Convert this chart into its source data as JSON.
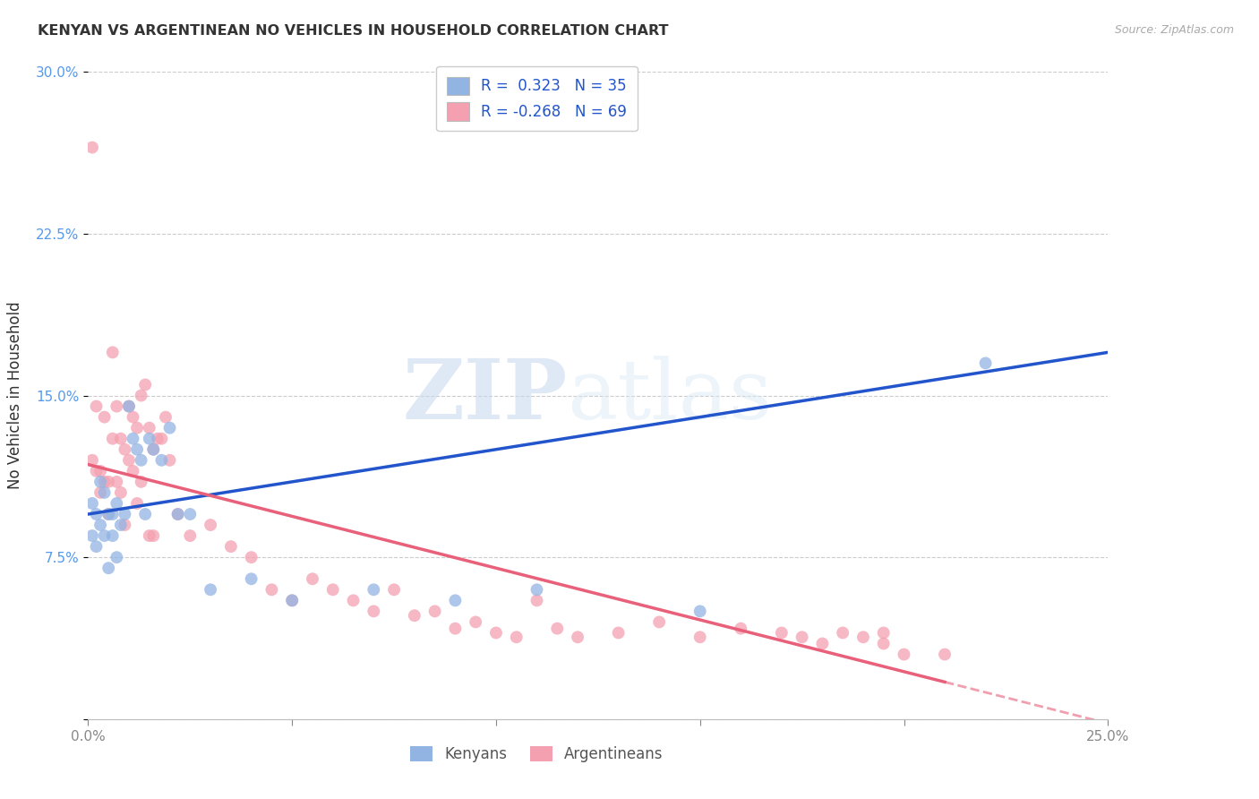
{
  "title": "KENYAN VS ARGENTINEAN NO VEHICLES IN HOUSEHOLD CORRELATION CHART",
  "source": "Source: ZipAtlas.com",
  "ylabel": "No Vehicles in Household",
  "xlim": [
    0.0,
    0.25
  ],
  "ylim": [
    0.0,
    0.3
  ],
  "x_ticks": [
    0.0,
    0.05,
    0.1,
    0.15,
    0.2,
    0.25
  ],
  "y_ticks": [
    0.0,
    0.075,
    0.15,
    0.225,
    0.3
  ],
  "kenyan_R": 0.323,
  "kenyan_N": 35,
  "argentinean_R": -0.268,
  "argentinean_N": 69,
  "kenyan_color": "#92b4e3",
  "argentinean_color": "#f4a0b0",
  "kenyan_line_color": "#2255cc",
  "argentinean_line_color": "#e8607a",
  "legend_label_kenyan": "Kenyans",
  "legend_label_argentinean": "Argentineans",
  "watermark_zip": "ZIP",
  "watermark_atlas": "atlas",
  "background_color": "#ffffff",
  "grid_color": "#cccccc",
  "title_color": "#333333",
  "kenyan_x": [
    0.001,
    0.001,
    0.002,
    0.002,
    0.003,
    0.003,
    0.004,
    0.004,
    0.005,
    0.005,
    0.006,
    0.006,
    0.007,
    0.007,
    0.008,
    0.009,
    0.01,
    0.011,
    0.012,
    0.013,
    0.014,
    0.015,
    0.016,
    0.018,
    0.02,
    0.022,
    0.025,
    0.03,
    0.04,
    0.05,
    0.07,
    0.09,
    0.11,
    0.15,
    0.22
  ],
  "kenyan_y": [
    0.1,
    0.085,
    0.095,
    0.08,
    0.11,
    0.09,
    0.105,
    0.085,
    0.095,
    0.07,
    0.095,
    0.085,
    0.1,
    0.075,
    0.09,
    0.095,
    0.145,
    0.13,
    0.125,
    0.12,
    0.095,
    0.13,
    0.125,
    0.12,
    0.135,
    0.095,
    0.095,
    0.06,
    0.065,
    0.055,
    0.06,
    0.055,
    0.06,
    0.05,
    0.165
  ],
  "argentinean_x": [
    0.001,
    0.001,
    0.002,
    0.002,
    0.003,
    0.003,
    0.004,
    0.004,
    0.005,
    0.005,
    0.006,
    0.006,
    0.007,
    0.007,
    0.008,
    0.008,
    0.009,
    0.009,
    0.01,
    0.01,
    0.011,
    0.011,
    0.012,
    0.012,
    0.013,
    0.013,
    0.014,
    0.015,
    0.015,
    0.016,
    0.016,
    0.017,
    0.018,
    0.019,
    0.02,
    0.022,
    0.025,
    0.03,
    0.035,
    0.04,
    0.045,
    0.05,
    0.055,
    0.06,
    0.065,
    0.07,
    0.075,
    0.08,
    0.085,
    0.09,
    0.095,
    0.1,
    0.105,
    0.11,
    0.115,
    0.12,
    0.13,
    0.14,
    0.15,
    0.16,
    0.17,
    0.175,
    0.18,
    0.185,
    0.19,
    0.195,
    0.2,
    0.21,
    0.195
  ],
  "argentinean_y": [
    0.265,
    0.12,
    0.145,
    0.115,
    0.115,
    0.105,
    0.14,
    0.11,
    0.11,
    0.095,
    0.17,
    0.13,
    0.145,
    0.11,
    0.13,
    0.105,
    0.125,
    0.09,
    0.145,
    0.12,
    0.14,
    0.115,
    0.135,
    0.1,
    0.15,
    0.11,
    0.155,
    0.135,
    0.085,
    0.125,
    0.085,
    0.13,
    0.13,
    0.14,
    0.12,
    0.095,
    0.085,
    0.09,
    0.08,
    0.075,
    0.06,
    0.055,
    0.065,
    0.06,
    0.055,
    0.05,
    0.06,
    0.048,
    0.05,
    0.042,
    0.045,
    0.04,
    0.038,
    0.055,
    0.042,
    0.038,
    0.04,
    0.045,
    0.038,
    0.042,
    0.04,
    0.038,
    0.035,
    0.04,
    0.038,
    0.035,
    0.03,
    0.03,
    0.04
  ],
  "kenyan_size": 100,
  "argentinean_size": 100,
  "kenyan_line_intercept": 0.095,
  "kenyan_line_slope": 0.3,
  "argentinean_line_intercept": 0.118,
  "argentinean_line_slope": -0.48
}
